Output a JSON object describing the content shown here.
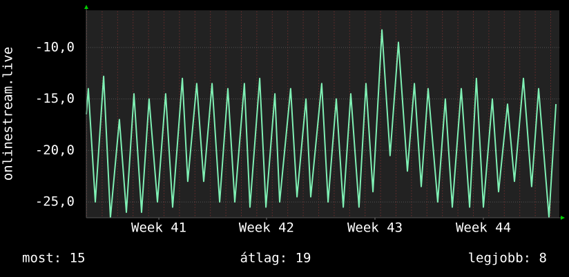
{
  "chart_data": {
    "type": "line",
    "y_label": "onlinestream.live",
    "x": [
      0,
      0.13,
      0.58,
      1.12,
      1.56,
      2.14,
      2.59,
      3.08,
      3.57,
      4.06,
      4.6,
      5.13,
      5.58,
      6.21,
      6.56,
      7.14,
      7.59,
      8.13,
      8.62,
      9.15,
      9.6,
      10.22,
      10.58,
      11.21,
      11.61,
      12.19,
      12.5,
      13.21,
      13.62,
      14.2,
      14.51,
      15.22,
      15.63,
      16.16,
      16.61,
      17.1,
      17.63,
      18.08,
      18.53,
      19.11,
      19.64,
      20.18,
      20.76,
      21.21,
      21.65,
      22.1,
      22.72,
      23.21,
      23.66,
      24.24,
      24.78,
      25.22,
      25.67,
      26.25,
      26.65,
      27.23,
      27.68,
      28.26,
      28.79,
      29.24,
      29.91,
      30.36
    ],
    "series": [
      {
        "color": "#7ff0b4",
        "values": [
          -16.5,
          -14,
          -25,
          -12.8,
          -26.5,
          -17,
          -26,
          -14.5,
          -26,
          -15,
          -25,
          -14.5,
          -25.5,
          -13,
          -23,
          -13.5,
          -23,
          -13.5,
          -25,
          -14,
          -25,
          -13.5,
          -25.5,
          -13,
          -25.5,
          -14.5,
          -25,
          -14,
          -24.5,
          -15,
          -24.5,
          -13.5,
          -25,
          -15,
          -25.5,
          -14.5,
          -25.5,
          -13.5,
          -24,
          -8.3,
          -20.5,
          -9.5,
          -22,
          -13.5,
          -23.5,
          -14,
          -25,
          -15,
          -25.5,
          -14,
          -25.5,
          -13,
          -25.5,
          -15,
          -24,
          -15.5,
          -23,
          -13,
          -23.5,
          -14,
          -26.5,
          -15.5
        ]
      }
    ],
    "xlim": [
      0,
      30.58
    ],
    "xticks": [
      {
        "value": 4.69,
        "label": "Week 41"
      },
      {
        "value": 11.65,
        "label": "Week 42"
      },
      {
        "value": 18.66,
        "label": "Week 43"
      },
      {
        "value": 25.67,
        "label": "Week 44"
      }
    ],
    "ylim": [
      -26.53,
      -6.4
    ],
    "yticks": [
      {
        "value": -10,
        "label": "-10,0"
      },
      {
        "value": -15,
        "label": "-15,0"
      },
      {
        "value": -20,
        "label": "-20,0"
      },
      {
        "value": -25,
        "label": "-25,0"
      }
    ],
    "grid": true,
    "stats": [
      "most: 15",
      "átlag: 19",
      "legjobb: 8"
    ]
  }
}
